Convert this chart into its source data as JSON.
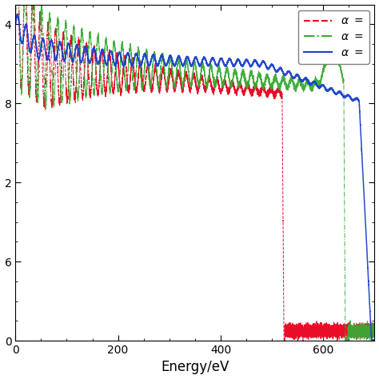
{
  "xlabel": "Energy/eV",
  "xlim": [
    0,
    700
  ],
  "ylim_log": [
    -20,
    -3
  ],
  "xticks": [
    0,
    200,
    400,
    600
  ],
  "ytick_positions": [
    -4,
    -8,
    -12,
    -16,
    -20
  ],
  "ytick_labels": [
    "4",
    "8",
    "2",
    "6",
    "0"
  ],
  "line_colors": [
    "#e8001c",
    "#3aaa35",
    "#1a3fcc"
  ],
  "background_color": "#ffffff",
  "legend_labels": [
    "α =",
    "α =",
    "α ="
  ]
}
